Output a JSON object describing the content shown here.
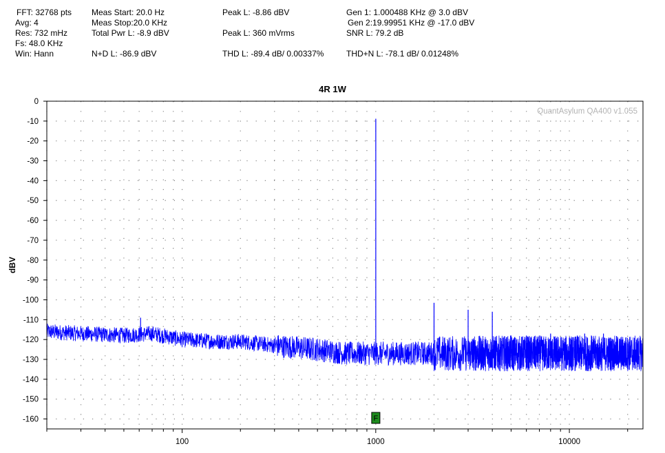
{
  "header": {
    "fft": "FFT: 32768 pts",
    "avg": "Avg: 4",
    "res": "Res: 732 mHz",
    "fs": "Fs: 48.0 KHz",
    "win": "Win: Hann",
    "meas_start": "Meas Start: 20.0 Hz",
    "meas_stop": "Meas Stop:20.0 KHz",
    "total_pwr": "Total Pwr L: -8.9 dBV",
    "nd": "N+D L: -86.9 dBV",
    "peak_dbv": "Peak L: -8.86 dBV",
    "peak_vrms": "Peak L: 360 mVrms",
    "thd": "THD L: -89.4 dB/ 0.00337%",
    "gen1": "Gen 1: 1.000488 KHz @ 3.0  dBV",
    "gen2": "Gen 2:19.99951 KHz @ -17.0  dBV",
    "snr": "SNR L: 79.2 dB",
    "thdn": "THD+N L: -78.1 dB/ 0.01248%"
  },
  "colors": {
    "trace": "#0000ff",
    "marker_fill": "#1e8c1e",
    "watermark": "#b4b4b4",
    "grid": "#808080"
  },
  "chart_data": {
    "type": "line",
    "title": "4R 1W",
    "ylabel": "dBV",
    "xlabel": "",
    "x_scale": "log",
    "xlim": [
      20,
      24000
    ],
    "ylim": [
      -165,
      0
    ],
    "grid": true,
    "watermark": "QuantAsylum QA400 v1.055",
    "yticks": [
      0,
      -10,
      -20,
      -30,
      -40,
      -50,
      -60,
      -70,
      -80,
      -90,
      -100,
      -110,
      -120,
      -130,
      -140,
      -150,
      -160
    ],
    "ytick_labels": [
      "0",
      "-10",
      "-20",
      "-30",
      "-40",
      "-50",
      "-60",
      "-70",
      "-80",
      "-90",
      "-100",
      "-110",
      "-120",
      "-130",
      "-140",
      "-150",
      "-160"
    ],
    "xticks": [
      100,
      1000,
      10000
    ],
    "xtick_labels": [
      "100",
      "1000",
      "10000"
    ],
    "marker": {
      "label": "F",
      "x": 1000.488
    },
    "series": [
      {
        "color": "#0000ff",
        "noise_floor": [
          [
            20,
            -116
          ],
          [
            30,
            -117
          ],
          [
            50,
            -118
          ],
          [
            70,
            -117
          ],
          [
            100,
            -120
          ],
          [
            150,
            -121
          ],
          [
            200,
            -121
          ],
          [
            300,
            -123
          ],
          [
            500,
            -125
          ],
          [
            700,
            -127
          ],
          [
            1000,
            -127
          ],
          [
            2000,
            -127
          ],
          [
            3000,
            -127
          ],
          [
            5000,
            -127
          ],
          [
            10000,
            -127
          ],
          [
            24000,
            -127
          ]
        ],
        "peaks": [
          [
            30,
            -114
          ],
          [
            61,
            -109
          ],
          [
            1000.488,
            -8.86
          ],
          [
            2000,
            -101.5
          ],
          [
            3000,
            -105
          ],
          [
            4000,
            -106
          ],
          [
            5000,
            -118
          ],
          [
            6000,
            -118
          ],
          [
            7000,
            -118
          ],
          [
            8000,
            -117
          ],
          [
            10000,
            -119
          ],
          [
            11000,
            -118
          ],
          [
            12000,
            -117
          ],
          [
            13000,
            -118
          ],
          [
            15000,
            -117
          ],
          [
            20000,
            -122
          ]
        ]
      }
    ]
  }
}
